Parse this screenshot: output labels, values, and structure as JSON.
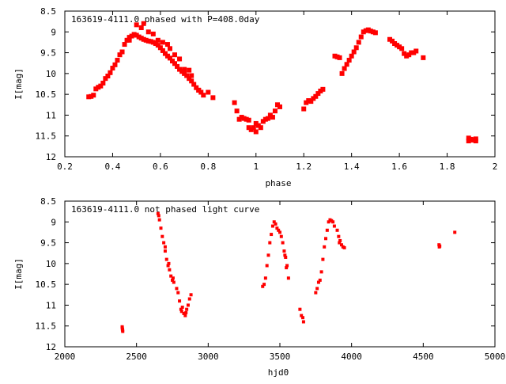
{
  "chart_data": [
    {
      "type": "scatter",
      "title": "163619-4111.0 phased with P=408.0day",
      "xlabel": "phase",
      "ylabel": "I[mag]",
      "xlim": [
        0.2,
        2.0
      ],
      "ylim": [
        8.5,
        12.0
      ],
      "y_inverted": true,
      "x_ticks": [
        "0.2",
        "0.4",
        "0.6",
        "0.8",
        "1",
        "1.2",
        "1.4",
        "1.6",
        "1.8",
        "2"
      ],
      "y_ticks": [
        "8.5",
        "9",
        "9.5",
        "10",
        "10.5",
        "11",
        "11.5",
        "12"
      ],
      "marker_color": "#ff0000",
      "grid": false,
      "points": [
        [
          0.3,
          10.56
        ],
        [
          0.31,
          10.55
        ],
        [
          0.32,
          10.52
        ],
        [
          0.33,
          10.37
        ],
        [
          0.34,
          10.33
        ],
        [
          0.35,
          10.3
        ],
        [
          0.36,
          10.23
        ],
        [
          0.37,
          10.12
        ],
        [
          0.38,
          10.06
        ],
        [
          0.39,
          9.98
        ],
        [
          0.4,
          9.87
        ],
        [
          0.41,
          9.79
        ],
        [
          0.42,
          9.68
        ],
        [
          0.44,
          9.48
        ],
        [
          0.45,
          9.3
        ],
        [
          0.46,
          9.2
        ],
        [
          0.47,
          9.13
        ],
        [
          0.48,
          9.1
        ],
        [
          0.49,
          9.06
        ],
        [
          0.5,
          9.08
        ],
        [
          0.51,
          9.12
        ],
        [
          0.52,
          9.15
        ],
        [
          0.53,
          9.18
        ],
        [
          0.54,
          9.2
        ],
        [
          0.55,
          9.22
        ],
        [
          0.56,
          9.23
        ],
        [
          0.57,
          9.25
        ],
        [
          0.58,
          9.28
        ],
        [
          0.59,
          9.32
        ],
        [
          0.6,
          9.38
        ],
        [
          0.61,
          9.45
        ],
        [
          0.62,
          9.52
        ],
        [
          0.63,
          9.58
        ],
        [
          0.64,
          9.63
        ],
        [
          0.65,
          9.7
        ],
        [
          0.66,
          9.76
        ],
        [
          0.67,
          9.83
        ],
        [
          0.68,
          9.9
        ],
        [
          0.69,
          9.95
        ],
        [
          0.7,
          10.0
        ],
        [
          0.71,
          10.05
        ],
        [
          0.72,
          10.12
        ],
        [
          0.73,
          10.18
        ],
        [
          0.74,
          10.26
        ],
        [
          0.75,
          10.34
        ],
        [
          0.76,
          10.4
        ],
        [
          0.77,
          10.45
        ],
        [
          0.78,
          10.52
        ],
        [
          0.5,
          8.83
        ],
        [
          0.52,
          8.9
        ],
        [
          0.53,
          8.8
        ],
        [
          0.55,
          9.0
        ],
        [
          0.57,
          9.05
        ],
        [
          0.59,
          9.2
        ],
        [
          0.61,
          9.25
        ],
        [
          0.63,
          9.3
        ],
        [
          0.64,
          9.4
        ],
        [
          0.66,
          9.55
        ],
        [
          0.68,
          9.65
        ],
        [
          0.7,
          9.9
        ],
        [
          0.72,
          9.92
        ],
        [
          0.73,
          10.05
        ],
        [
          0.76,
          10.4
        ],
        [
          0.8,
          10.45
        ],
        [
          0.82,
          10.58
        ],
        [
          0.47,
          9.2
        ],
        [
          0.43,
          9.55
        ],
        [
          0.91,
          10.7
        ],
        [
          0.92,
          10.9
        ],
        [
          0.93,
          11.1
        ],
        [
          0.94,
          11.05
        ],
        [
          0.95,
          11.08
        ],
        [
          0.96,
          11.1
        ],
        [
          0.97,
          11.12
        ],
        [
          0.98,
          11.35
        ],
        [
          0.99,
          11.3
        ],
        [
          1.0,
          11.4
        ],
        [
          1.01,
          11.25
        ],
        [
          1.02,
          11.3
        ],
        [
          1.03,
          11.15
        ],
        [
          1.04,
          11.1
        ],
        [
          1.05,
          11.08
        ],
        [
          1.06,
          11.0
        ],
        [
          1.07,
          11.05
        ],
        [
          1.08,
          10.9
        ],
        [
          1.09,
          10.75
        ],
        [
          1.1,
          10.8
        ],
        [
          0.97,
          11.3
        ],
        [
          1.0,
          11.2
        ],
        [
          1.2,
          10.85
        ],
        [
          1.21,
          10.7
        ],
        [
          1.22,
          10.65
        ],
        [
          1.23,
          10.67
        ],
        [
          1.24,
          10.6
        ],
        [
          1.25,
          10.55
        ],
        [
          1.26,
          10.48
        ],
        [
          1.27,
          10.42
        ],
        [
          1.28,
          10.38
        ],
        [
          1.33,
          9.58
        ],
        [
          1.34,
          9.6
        ],
        [
          1.35,
          9.62
        ],
        [
          1.36,
          10.0
        ],
        [
          1.37,
          9.88
        ],
        [
          1.38,
          9.78
        ],
        [
          1.39,
          9.68
        ],
        [
          1.4,
          9.58
        ],
        [
          1.41,
          9.48
        ],
        [
          1.42,
          9.38
        ],
        [
          1.43,
          9.25
        ],
        [
          1.44,
          9.12
        ],
        [
          1.45,
          9.0
        ],
        [
          1.46,
          8.97
        ],
        [
          1.47,
          8.95
        ],
        [
          1.48,
          8.98
        ],
        [
          1.49,
          9.0
        ],
        [
          1.5,
          9.02
        ],
        [
          1.56,
          9.18
        ],
        [
          1.57,
          9.22
        ],
        [
          1.58,
          9.28
        ],
        [
          1.59,
          9.32
        ],
        [
          1.6,
          9.36
        ],
        [
          1.61,
          9.4
        ],
        [
          1.62,
          9.52
        ],
        [
          1.63,
          9.58
        ],
        [
          1.64,
          9.55
        ],
        [
          1.65,
          9.5
        ],
        [
          1.66,
          9.5
        ],
        [
          1.67,
          9.46
        ],
        [
          1.7,
          9.62
        ],
        [
          1.89,
          11.55
        ],
        [
          1.9,
          11.58
        ],
        [
          1.91,
          11.6
        ],
        [
          1.92,
          11.57
        ],
        [
          1.89,
          11.62
        ],
        [
          1.92,
          11.62
        ]
      ]
    },
    {
      "type": "scatter",
      "title": "163619-4111.0 not phased light curve",
      "xlabel": "hjd0",
      "ylabel": "I[mag]",
      "xlim": [
        2000,
        5000
      ],
      "ylim": [
        8.5,
        12.0
      ],
      "y_inverted": true,
      "x_ticks": [
        "2000",
        "2500",
        "3000",
        "3500",
        "4000",
        "4500",
        "5000"
      ],
      "y_ticks": [
        "8.5",
        "9",
        "9.5",
        "10",
        "10.5",
        "11",
        "11.5",
        "12"
      ],
      "marker_color": "#ff0000",
      "grid": false,
      "points": [
        [
          2400,
          11.52
        ],
        [
          2401,
          11.55
        ],
        [
          2402,
          11.58
        ],
        [
          2403,
          11.6
        ],
        [
          2404,
          11.63
        ],
        [
          2650,
          8.8
        ],
        [
          2655,
          8.85
        ],
        [
          2660,
          8.95
        ],
        [
          2670,
          9.15
        ],
        [
          2680,
          9.35
        ],
        [
          2690,
          9.5
        ],
        [
          2700,
          9.7
        ],
        [
          2710,
          9.9
        ],
        [
          2720,
          10.05
        ],
        [
          2730,
          10.15
        ],
        [
          2740,
          10.3
        ],
        [
          2750,
          10.4
        ],
        [
          2760,
          10.45
        ],
        [
          2780,
          10.6
        ],
        [
          2790,
          10.7
        ],
        [
          2800,
          10.9
        ],
        [
          2810,
          11.1
        ],
        [
          2820,
          11.05
        ],
        [
          2830,
          11.2
        ],
        [
          2840,
          11.25
        ],
        [
          2850,
          11.1
        ],
        [
          2860,
          11.0
        ],
        [
          2870,
          10.85
        ],
        [
          2880,
          10.75
        ],
        [
          2700,
          9.6
        ],
        [
          2725,
          10.0
        ],
        [
          2755,
          10.35
        ],
        [
          2815,
          11.15
        ],
        [
          2845,
          11.18
        ],
        [
          3380,
          10.55
        ],
        [
          3390,
          10.5
        ],
        [
          3400,
          10.35
        ],
        [
          3410,
          10.05
        ],
        [
          3420,
          9.8
        ],
        [
          3430,
          9.5
        ],
        [
          3440,
          9.3
        ],
        [
          3450,
          9.1
        ],
        [
          3460,
          9.0
        ],
        [
          3470,
          9.05
        ],
        [
          3480,
          9.15
        ],
        [
          3490,
          9.2
        ],
        [
          3500,
          9.25
        ],
        [
          3510,
          9.35
        ],
        [
          3520,
          9.5
        ],
        [
          3530,
          9.7
        ],
        [
          3540,
          9.85
        ],
        [
          3550,
          10.05
        ],
        [
          3560,
          10.35
        ],
        [
          3535,
          9.8
        ],
        [
          3545,
          10.1
        ],
        [
          3640,
          11.1
        ],
        [
          3650,
          11.25
        ],
        [
          3660,
          11.3
        ],
        [
          3665,
          11.4
        ],
        [
          3750,
          10.7
        ],
        [
          3760,
          10.6
        ],
        [
          3770,
          10.45
        ],
        [
          3780,
          10.4
        ],
        [
          3790,
          10.2
        ],
        [
          3800,
          9.9
        ],
        [
          3810,
          9.6
        ],
        [
          3820,
          9.4
        ],
        [
          3830,
          9.2
        ],
        [
          3840,
          9.0
        ],
        [
          3850,
          8.95
        ],
        [
          3860,
          8.97
        ],
        [
          3870,
          9.0
        ],
        [
          3880,
          9.1
        ],
        [
          3900,
          9.2
        ],
        [
          3910,
          9.35
        ],
        [
          3920,
          9.45
        ],
        [
          3930,
          9.55
        ],
        [
          3940,
          9.6
        ],
        [
          3950,
          9.62
        ],
        [
          3915,
          9.5
        ],
        [
          4610,
          9.55
        ],
        [
          4612,
          9.6
        ],
        [
          4615,
          9.58
        ],
        [
          4720,
          9.25
        ]
      ]
    }
  ]
}
